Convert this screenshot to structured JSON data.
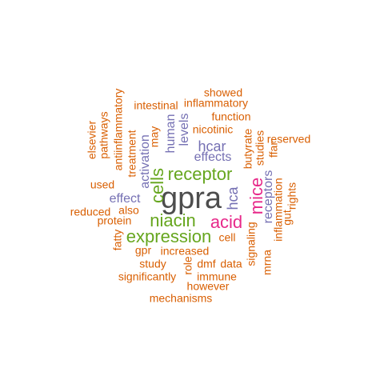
{
  "colors": {
    "background": "#ffffff",
    "grey": "#4d4d4d",
    "green": "#66a61e",
    "magenta": "#e7298a",
    "purple": "#7570b3",
    "orange": "#d95f02"
  },
  "words": [
    {
      "id": "w-gpra",
      "text": "gpra",
      "color": "grey"
    },
    {
      "id": "w-receptor",
      "text": "receptor",
      "color": "green"
    },
    {
      "id": "w-expression",
      "text": "expression",
      "color": "green"
    },
    {
      "id": "w-niacin",
      "text": "niacin",
      "color": "green"
    },
    {
      "id": "w-cells",
      "text": "cells",
      "color": "green"
    },
    {
      "id": "w-acid",
      "text": "acid",
      "color": "magenta"
    },
    {
      "id": "w-mice",
      "text": "mice",
      "color": "magenta"
    },
    {
      "id": "w-hca",
      "text": "hca",
      "color": "purple"
    },
    {
      "id": "w-hcar",
      "text": "hcar",
      "color": "purple"
    },
    {
      "id": "w-effects",
      "text": "effects",
      "color": "purple"
    },
    {
      "id": "w-effect",
      "text": "effect",
      "color": "purple"
    },
    {
      "id": "w-activation",
      "text": "activation",
      "color": "purple"
    },
    {
      "id": "w-human",
      "text": "human",
      "color": "purple"
    },
    {
      "id": "w-levels",
      "text": "levels",
      "color": "purple"
    },
    {
      "id": "w-receptors",
      "text": "receptors",
      "color": "purple"
    },
    {
      "id": "w-showed",
      "text": "showed",
      "color": "orange"
    },
    {
      "id": "w-inflammatory",
      "text": "inflammatory",
      "color": "orange"
    },
    {
      "id": "w-intestinal",
      "text": "intestinal",
      "color": "orange"
    },
    {
      "id": "w-function",
      "text": "function",
      "color": "orange"
    },
    {
      "id": "w-nicotinic",
      "text": "nicotinic",
      "color": "orange"
    },
    {
      "id": "w-reserved",
      "text": "reserved",
      "color": "orange"
    },
    {
      "id": "w-ffar",
      "text": "ffar",
      "color": "orange"
    },
    {
      "id": "w-studies",
      "text": "studies",
      "color": "orange"
    },
    {
      "id": "w-butyrate",
      "text": "butyrate",
      "color": "orange"
    },
    {
      "id": "w-may",
      "text": "may",
      "color": "orange"
    },
    {
      "id": "w-treatment",
      "text": "treatment",
      "color": "orange"
    },
    {
      "id": "w-antiinflammatory",
      "text": "antiinflammatory",
      "color": "orange"
    },
    {
      "id": "w-pathways",
      "text": "pathways",
      "color": "orange"
    },
    {
      "id": "w-elsevier",
      "text": "elsevier",
      "color": "orange"
    },
    {
      "id": "w-used",
      "text": "used",
      "color": "orange"
    },
    {
      "id": "w-also",
      "text": "also",
      "color": "orange"
    },
    {
      "id": "w-reduced",
      "text": "reduced",
      "color": "orange"
    },
    {
      "id": "w-protein",
      "text": "protein",
      "color": "orange"
    },
    {
      "id": "w-fatty",
      "text": "fatty",
      "color": "orange"
    },
    {
      "id": "w-gpr",
      "text": "gpr",
      "color": "orange"
    },
    {
      "id": "w-increased",
      "text": "increased",
      "color": "orange"
    },
    {
      "id": "w-cell",
      "text": "cell",
      "color": "orange"
    },
    {
      "id": "w-study",
      "text": "study",
      "color": "orange"
    },
    {
      "id": "w-role",
      "text": "role",
      "color": "orange"
    },
    {
      "id": "w-dmf",
      "text": "dmf",
      "color": "orange"
    },
    {
      "id": "w-data",
      "text": "data",
      "color": "orange"
    },
    {
      "id": "w-significantly",
      "text": "significantly",
      "color": "orange"
    },
    {
      "id": "w-immune",
      "text": "immune",
      "color": "orange"
    },
    {
      "id": "w-however",
      "text": "however",
      "color": "orange"
    },
    {
      "id": "w-mechanisms",
      "text": "mechanisms",
      "color": "orange"
    },
    {
      "id": "w-signaling",
      "text": "signaling",
      "color": "orange"
    },
    {
      "id": "w-mrna",
      "text": "mrna",
      "color": "orange"
    },
    {
      "id": "w-inflammation",
      "text": "inflammation",
      "color": "orange"
    },
    {
      "id": "w-gut",
      "text": "gut",
      "color": "orange"
    },
    {
      "id": "w-rights",
      "text": "rights",
      "color": "orange"
    }
  ]
}
